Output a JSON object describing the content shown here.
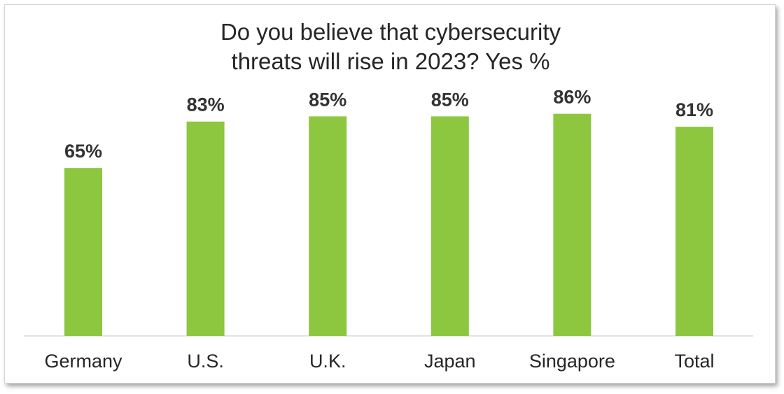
{
  "chart_data": {
    "type": "bar",
    "title_lines": [
      "Do you believe that cybersecurity",
      "threats will rise in 2023? Yes %"
    ],
    "categories": [
      "Germany",
      "U.S.",
      "U.K.",
      "Japan",
      "Singapore",
      "Total"
    ],
    "values": [
      65,
      83,
      85,
      85,
      86,
      81
    ],
    "value_labels": [
      "65%",
      "83%",
      "85%",
      "85%",
      "86%",
      "81%"
    ],
    "ylim": [
      0,
      100
    ],
    "grid": false,
    "legend": "none",
    "bar_color": "#8DC63F",
    "axis_color": "#d9d9d9"
  }
}
